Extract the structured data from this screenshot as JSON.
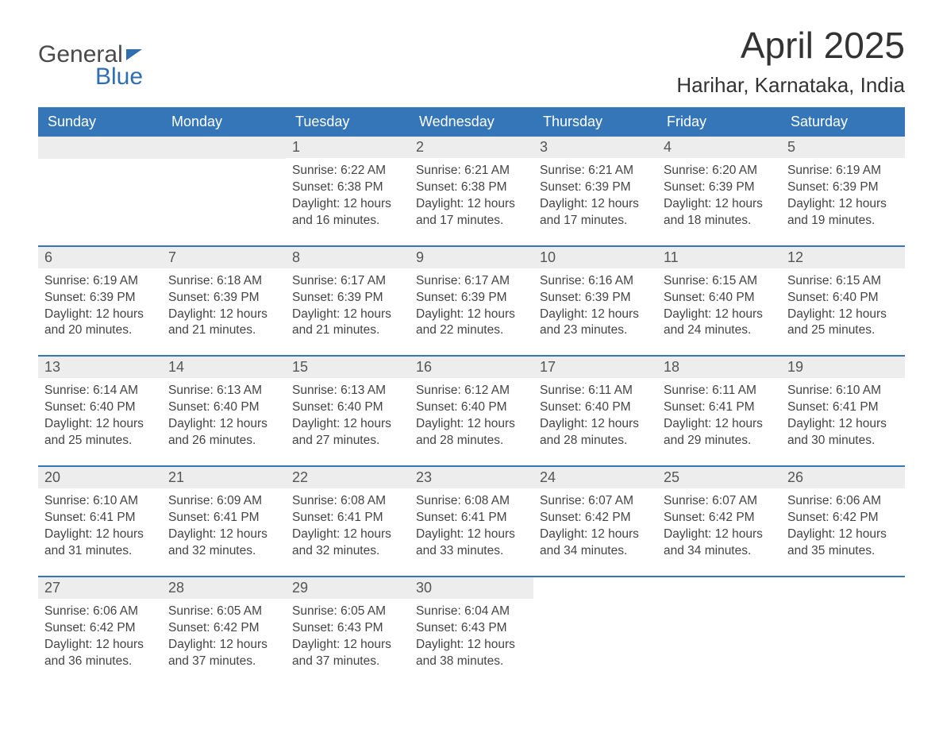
{
  "logo": {
    "general": "General",
    "blue": "Blue"
  },
  "title": {
    "month": "April 2025",
    "location": "Harihar, Karnataka, India"
  },
  "colors": {
    "header_bg": "#3576b9",
    "header_text": "#ffffff",
    "day_number_bg": "#ededed",
    "day_number_text": "#555555",
    "body_text": "#444444",
    "logo_general": "#4a4a4a",
    "logo_blue": "#2f6fb0",
    "title_text": "#333333",
    "week_border": "#3576b9"
  },
  "typography": {
    "title_month_fontsize": 46,
    "title_location_fontsize": 26,
    "header_fontsize": 18,
    "day_number_fontsize": 18,
    "content_fontsize": 15.5,
    "logo_fontsize": 30
  },
  "weekdays": [
    "Sunday",
    "Monday",
    "Tuesday",
    "Wednesday",
    "Thursday",
    "Friday",
    "Saturday"
  ],
  "weeks": [
    [
      null,
      null,
      {
        "day": "1",
        "sunrise": "Sunrise: 6:22 AM",
        "sunset": "Sunset: 6:38 PM",
        "daylight1": "Daylight: 12 hours",
        "daylight2": "and 16 minutes."
      },
      {
        "day": "2",
        "sunrise": "Sunrise: 6:21 AM",
        "sunset": "Sunset: 6:38 PM",
        "daylight1": "Daylight: 12 hours",
        "daylight2": "and 17 minutes."
      },
      {
        "day": "3",
        "sunrise": "Sunrise: 6:21 AM",
        "sunset": "Sunset: 6:39 PM",
        "daylight1": "Daylight: 12 hours",
        "daylight2": "and 17 minutes."
      },
      {
        "day": "4",
        "sunrise": "Sunrise: 6:20 AM",
        "sunset": "Sunset: 6:39 PM",
        "daylight1": "Daylight: 12 hours",
        "daylight2": "and 18 minutes."
      },
      {
        "day": "5",
        "sunrise": "Sunrise: 6:19 AM",
        "sunset": "Sunset: 6:39 PM",
        "daylight1": "Daylight: 12 hours",
        "daylight2": "and 19 minutes."
      }
    ],
    [
      {
        "day": "6",
        "sunrise": "Sunrise: 6:19 AM",
        "sunset": "Sunset: 6:39 PM",
        "daylight1": "Daylight: 12 hours",
        "daylight2": "and 20 minutes."
      },
      {
        "day": "7",
        "sunrise": "Sunrise: 6:18 AM",
        "sunset": "Sunset: 6:39 PM",
        "daylight1": "Daylight: 12 hours",
        "daylight2": "and 21 minutes."
      },
      {
        "day": "8",
        "sunrise": "Sunrise: 6:17 AM",
        "sunset": "Sunset: 6:39 PM",
        "daylight1": "Daylight: 12 hours",
        "daylight2": "and 21 minutes."
      },
      {
        "day": "9",
        "sunrise": "Sunrise: 6:17 AM",
        "sunset": "Sunset: 6:39 PM",
        "daylight1": "Daylight: 12 hours",
        "daylight2": "and 22 minutes."
      },
      {
        "day": "10",
        "sunrise": "Sunrise: 6:16 AM",
        "sunset": "Sunset: 6:39 PM",
        "daylight1": "Daylight: 12 hours",
        "daylight2": "and 23 minutes."
      },
      {
        "day": "11",
        "sunrise": "Sunrise: 6:15 AM",
        "sunset": "Sunset: 6:40 PM",
        "daylight1": "Daylight: 12 hours",
        "daylight2": "and 24 minutes."
      },
      {
        "day": "12",
        "sunrise": "Sunrise: 6:15 AM",
        "sunset": "Sunset: 6:40 PM",
        "daylight1": "Daylight: 12 hours",
        "daylight2": "and 25 minutes."
      }
    ],
    [
      {
        "day": "13",
        "sunrise": "Sunrise: 6:14 AM",
        "sunset": "Sunset: 6:40 PM",
        "daylight1": "Daylight: 12 hours",
        "daylight2": "and 25 minutes."
      },
      {
        "day": "14",
        "sunrise": "Sunrise: 6:13 AM",
        "sunset": "Sunset: 6:40 PM",
        "daylight1": "Daylight: 12 hours",
        "daylight2": "and 26 minutes."
      },
      {
        "day": "15",
        "sunrise": "Sunrise: 6:13 AM",
        "sunset": "Sunset: 6:40 PM",
        "daylight1": "Daylight: 12 hours",
        "daylight2": "and 27 minutes."
      },
      {
        "day": "16",
        "sunrise": "Sunrise: 6:12 AM",
        "sunset": "Sunset: 6:40 PM",
        "daylight1": "Daylight: 12 hours",
        "daylight2": "and 28 minutes."
      },
      {
        "day": "17",
        "sunrise": "Sunrise: 6:11 AM",
        "sunset": "Sunset: 6:40 PM",
        "daylight1": "Daylight: 12 hours",
        "daylight2": "and 28 minutes."
      },
      {
        "day": "18",
        "sunrise": "Sunrise: 6:11 AM",
        "sunset": "Sunset: 6:41 PM",
        "daylight1": "Daylight: 12 hours",
        "daylight2": "and 29 minutes."
      },
      {
        "day": "19",
        "sunrise": "Sunrise: 6:10 AM",
        "sunset": "Sunset: 6:41 PM",
        "daylight1": "Daylight: 12 hours",
        "daylight2": "and 30 minutes."
      }
    ],
    [
      {
        "day": "20",
        "sunrise": "Sunrise: 6:10 AM",
        "sunset": "Sunset: 6:41 PM",
        "daylight1": "Daylight: 12 hours",
        "daylight2": "and 31 minutes."
      },
      {
        "day": "21",
        "sunrise": "Sunrise: 6:09 AM",
        "sunset": "Sunset: 6:41 PM",
        "daylight1": "Daylight: 12 hours",
        "daylight2": "and 32 minutes."
      },
      {
        "day": "22",
        "sunrise": "Sunrise: 6:08 AM",
        "sunset": "Sunset: 6:41 PM",
        "daylight1": "Daylight: 12 hours",
        "daylight2": "and 32 minutes."
      },
      {
        "day": "23",
        "sunrise": "Sunrise: 6:08 AM",
        "sunset": "Sunset: 6:41 PM",
        "daylight1": "Daylight: 12 hours",
        "daylight2": "and 33 minutes."
      },
      {
        "day": "24",
        "sunrise": "Sunrise: 6:07 AM",
        "sunset": "Sunset: 6:42 PM",
        "daylight1": "Daylight: 12 hours",
        "daylight2": "and 34 minutes."
      },
      {
        "day": "25",
        "sunrise": "Sunrise: 6:07 AM",
        "sunset": "Sunset: 6:42 PM",
        "daylight1": "Daylight: 12 hours",
        "daylight2": "and 34 minutes."
      },
      {
        "day": "26",
        "sunrise": "Sunrise: 6:06 AM",
        "sunset": "Sunset: 6:42 PM",
        "daylight1": "Daylight: 12 hours",
        "daylight2": "and 35 minutes."
      }
    ],
    [
      {
        "day": "27",
        "sunrise": "Sunrise: 6:06 AM",
        "sunset": "Sunset: 6:42 PM",
        "daylight1": "Daylight: 12 hours",
        "daylight2": "and 36 minutes."
      },
      {
        "day": "28",
        "sunrise": "Sunrise: 6:05 AM",
        "sunset": "Sunset: 6:42 PM",
        "daylight1": "Daylight: 12 hours",
        "daylight2": "and 37 minutes."
      },
      {
        "day": "29",
        "sunrise": "Sunrise: 6:05 AM",
        "sunset": "Sunset: 6:43 PM",
        "daylight1": "Daylight: 12 hours",
        "daylight2": "and 37 minutes."
      },
      {
        "day": "30",
        "sunrise": "Sunrise: 6:04 AM",
        "sunset": "Sunset: 6:43 PM",
        "daylight1": "Daylight: 12 hours",
        "daylight2": "and 38 minutes."
      },
      null,
      null,
      null
    ]
  ]
}
